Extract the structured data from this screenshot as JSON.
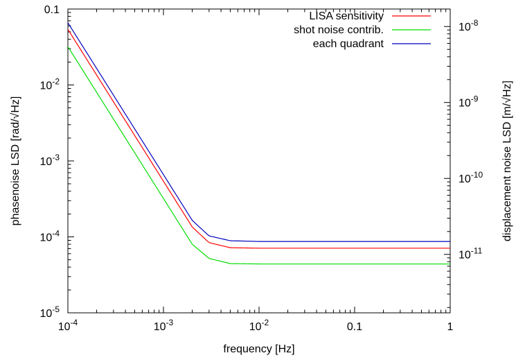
{
  "chart_data": {
    "type": "line",
    "xlabel": "frequency [Hz]",
    "ylabel_left": "phasenoise LSD [rad/√Hz]",
    "ylabel_right": "displacement noise LSD [m/√Hz]",
    "xscale": "log",
    "yscale_left": "log",
    "yscale_right": "log",
    "xlim": [
      0.0001,
      1
    ],
    "ylim_left": [
      1e-05,
      0.1
    ],
    "ylim_right": [
      1.7e-12,
      1.7e-08
    ],
    "grid": false,
    "legend_position": "top-right",
    "x_ticks": [
      {
        "value": 0.0001,
        "base": "10",
        "exp": "-4"
      },
      {
        "value": 0.001,
        "base": "10",
        "exp": "-3"
      },
      {
        "value": 0.01,
        "base": "10",
        "exp": "-2"
      },
      {
        "value": 0.1,
        "base": "0.1",
        "exp": ""
      },
      {
        "value": 1,
        "base": "1",
        "exp": ""
      }
    ],
    "y_ticks_left": [
      {
        "value": 1e-05,
        "base": "10",
        "exp": "-5"
      },
      {
        "value": 0.0001,
        "base": "10",
        "exp": "-4"
      },
      {
        "value": 0.001,
        "base": "10",
        "exp": "-3"
      },
      {
        "value": 0.01,
        "base": "10",
        "exp": "-2"
      },
      {
        "value": 0.1,
        "base": "0.1",
        "exp": ""
      }
    ],
    "y_ticks_right": [
      {
        "value": 1e-11,
        "base": "10",
        "exp": "-11"
      },
      {
        "value": 1e-10,
        "base": "10",
        "exp": "-10"
      },
      {
        "value": 1e-09,
        "base": "10",
        "exp": "-9"
      },
      {
        "value": 1e-08,
        "base": "10",
        "exp": "-8"
      }
    ],
    "series": [
      {
        "name": "LISA sensitivity",
        "color": "#ff0000",
        "x": [
          0.0001,
          0.0002,
          0.0005,
          0.001,
          0.002,
          0.003,
          0.005,
          0.01,
          0.1,
          1
        ],
        "y": [
          0.054,
          0.0135,
          0.00216,
          0.00054,
          0.000135,
          8.4e-05,
          7.2e-05,
          7.1e-05,
          7.1e-05,
          7.1e-05
        ]
      },
      {
        "name": "shot noise contrib.",
        "color": "#00dd00",
        "x": [
          0.0001,
          0.0002,
          0.0005,
          0.001,
          0.002,
          0.003,
          0.005,
          0.01,
          0.1,
          1
        ],
        "y": [
          0.032,
          0.008,
          0.00128,
          0.00032,
          8e-05,
          5.2e-05,
          4.45e-05,
          4.4e-05,
          4.4e-05,
          4.4e-05
        ]
      },
      {
        "name": "each quadrant",
        "color": "#0000bb",
        "x": [
          0.0001,
          0.0002,
          0.0005,
          0.001,
          0.002,
          0.003,
          0.005,
          0.01,
          0.1,
          1
        ],
        "y": [
          0.066,
          0.0165,
          0.00264,
          0.00066,
          0.000165,
          0.000103,
          8.9e-05,
          8.7e-05,
          8.7e-05,
          8.7e-05
        ]
      }
    ]
  }
}
